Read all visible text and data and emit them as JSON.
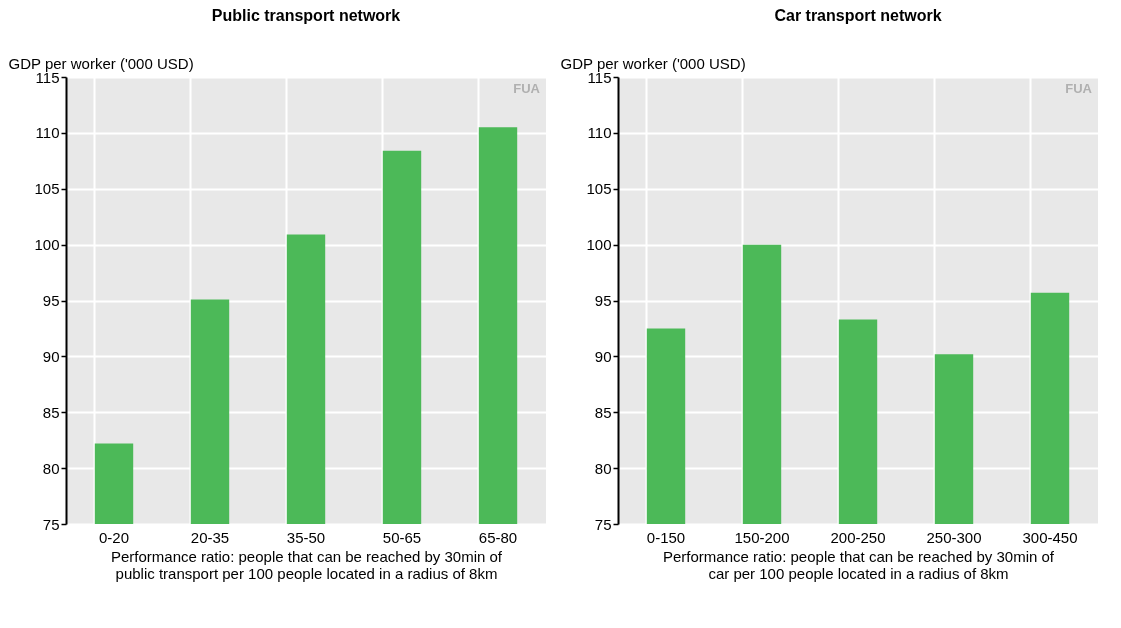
{
  "chart_data": [
    {
      "type": "bar",
      "title": "Public transport network",
      "ylabel": "GDP per worker ('000 USD)",
      "xlabel": "Performance ratio: people that can be reached by 30min of public transport per 100 people located in a radius of 8km",
      "categories": [
        "0-20",
        "20-35",
        "35-50",
        "50-65",
        "65-80"
      ],
      "values": [
        82.2,
        95.1,
        100.9,
        108.4,
        110.5
      ],
      "color": "#4cb958",
      "ylim": [
        75,
        115
      ],
      "yticks": [
        75,
        80,
        85,
        90,
        95,
        100,
        105,
        110,
        115
      ],
      "grid": true,
      "annotations": [
        "FUA"
      ]
    },
    {
      "type": "bar",
      "title": "Car transport network",
      "ylabel": "GDP per worker ('000 USD)",
      "xlabel": "Performance ratio: people that can be reached by 30min of car per 100 people located in a radius of 8km",
      "categories": [
        "0-150",
        "150-200",
        "200-250",
        "250-300",
        "300-450"
      ],
      "values": [
        92.5,
        100.0,
        93.3,
        90.2,
        95.7
      ],
      "color": "#4cb958",
      "ylim": [
        75,
        115
      ],
      "yticks": [
        75,
        80,
        85,
        90,
        95,
        100,
        105,
        110,
        115
      ],
      "grid": true,
      "annotations": [
        "FUA"
      ]
    }
  ]
}
